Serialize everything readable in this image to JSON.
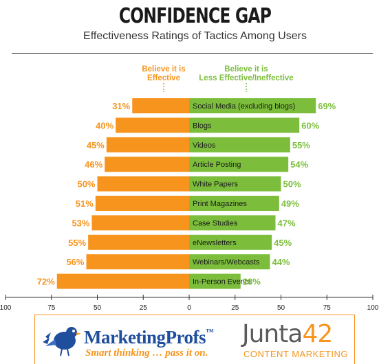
{
  "header": {
    "title": "CONFIDENCE GAP",
    "subtitle": "Effectiveness Ratings of Tactics Among Users"
  },
  "legend": {
    "effective": "Believe it is\nEffective",
    "less_effective": "Believe it is\nLess Effective/Ineffective"
  },
  "colors": {
    "effective": "#f7941d",
    "less_effective": "#7cbe3c",
    "pct_effective": "#f7941d",
    "pct_less": "#7cbe3c"
  },
  "chart_data": {
    "type": "bar",
    "orientation": "horizontal-diverging",
    "categories": [
      "Social Media (excluding blogs)",
      "Blogs",
      "Videos",
      "Article Posting",
      "White Papers",
      "Print Magazines",
      "Case Studies",
      "eNewsletters",
      "Webinars/Webcasts",
      "In-Person Events"
    ],
    "series": [
      {
        "name": "Believe it is Effective",
        "values": [
          31,
          40,
          45,
          46,
          50,
          51,
          53,
          55,
          56,
          72
        ]
      },
      {
        "name": "Believe it is Less Effective/Ineffective",
        "values": [
          69,
          60,
          55,
          54,
          50,
          49,
          47,
          45,
          44,
          28
        ]
      }
    ],
    "value_labels_left": [
      "31%",
      "40%",
      "45%",
      "46%",
      "50%",
      "51%",
      "53%",
      "55%",
      "56%",
      "72%"
    ],
    "value_labels_right": [
      "69%",
      "60%",
      "55%",
      "54%",
      "50%",
      "49%",
      "47%",
      "45%",
      "44%",
      "28%"
    ],
    "xlim": [
      -100,
      100
    ],
    "ticks": [
      100,
      75,
      50,
      25,
      0,
      25,
      50,
      75,
      100
    ]
  },
  "footer": {
    "mp_name": "MarketingProfs",
    "mp_tm": "™",
    "mp_tagline": "Smart thinking … pass it on.",
    "junta_word": "Junta",
    "junta_number": "42",
    "junta_tagline": "CONTENT MARKETING"
  }
}
